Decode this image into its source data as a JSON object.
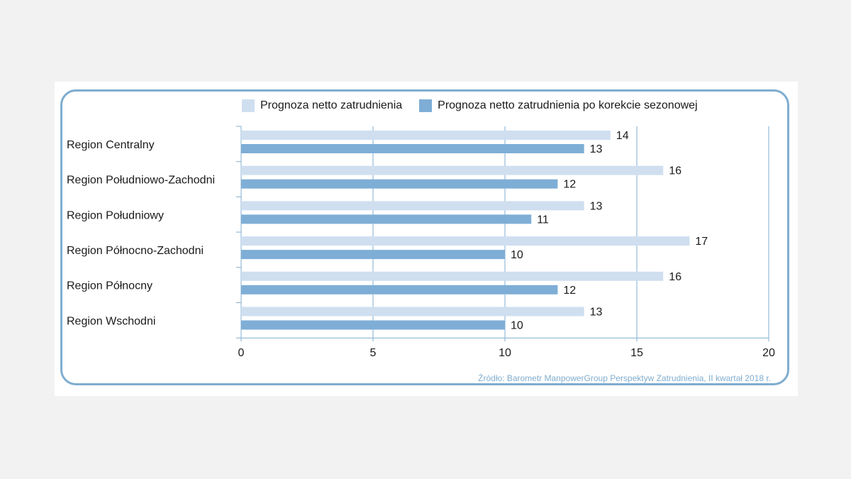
{
  "colors": {
    "series_light": "#cfdff0",
    "series_dark": "#7eaed6",
    "grid": "#7fadd0",
    "frame": "#7fadd0"
  },
  "legend": {
    "items": [
      "Prognoza netto zatrudnienia",
      "Prognoza netto zatrudnienia po korekcie sezonowej"
    ]
  },
  "source": "Źródło: Barometr ManpowerGroup Perspektyw Zatrudnienia, II kwartał 2018 r.",
  "chart_data": {
    "type": "bar",
    "orientation": "horizontal",
    "categories": [
      "Region Centralny",
      "Region Południowo-Zachodni",
      "Region Południowy",
      "Region Północno-Zachodni",
      "Region Północny",
      "Region Wschodni"
    ],
    "series": [
      {
        "name": "Prognoza netto zatrudnienia",
        "values": [
          14,
          16,
          13,
          17,
          16,
          13
        ]
      },
      {
        "name": "Prognoza netto zatrudnienia po korekcie sezonowej",
        "values": [
          13,
          12,
          11,
          10,
          12,
          10
        ]
      }
    ],
    "xlim": [
      0,
      20
    ],
    "xticks": [
      0,
      5,
      10,
      15,
      20
    ],
    "grid": true,
    "legend_position": "top"
  }
}
